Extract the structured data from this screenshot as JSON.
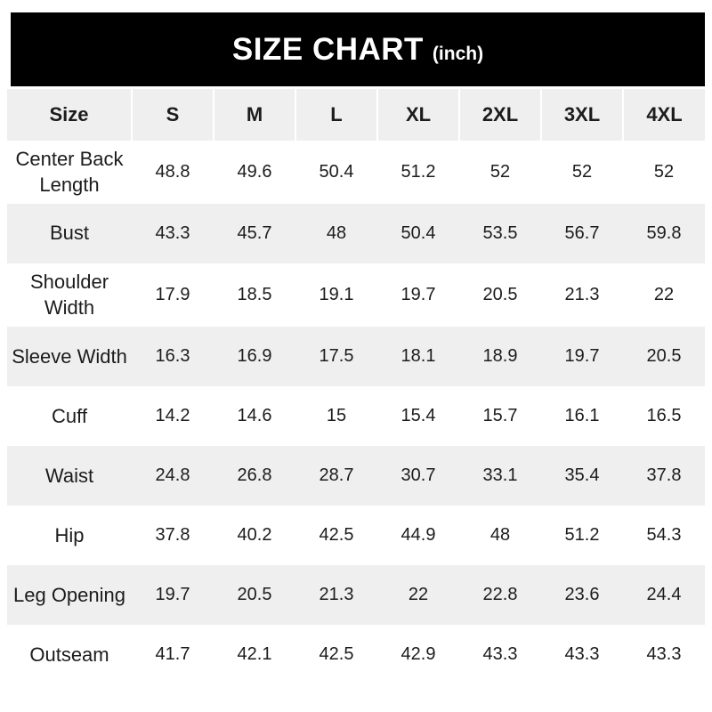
{
  "header": {
    "title": "SIZE CHART",
    "unit_label": "(inch)"
  },
  "colors": {
    "banner_bg": "#000000",
    "banner_text": "#ffffff",
    "stripe": "#efefef",
    "text": "#1c1c1c",
    "page_bg": "#ffffff"
  },
  "chart_data": {
    "type": "table",
    "title": "SIZE CHART",
    "unit": "(inch)",
    "columns": [
      "Size",
      "S",
      "M",
      "L",
      "XL",
      "2XL",
      "3XL",
      "4XL"
    ],
    "rows": [
      {
        "label": "Center Back Length",
        "values": [
          "48.8",
          "49.6",
          "50.4",
          "51.2",
          "52",
          "52",
          "52"
        ]
      },
      {
        "label": "Bust",
        "values": [
          "43.3",
          "45.7",
          "48",
          "50.4",
          "53.5",
          "56.7",
          "59.8"
        ]
      },
      {
        "label": "Shoulder Width",
        "values": [
          "17.9",
          "18.5",
          "19.1",
          "19.7",
          "20.5",
          "21.3",
          "22"
        ]
      },
      {
        "label": "Sleeve Width",
        "values": [
          "16.3",
          "16.9",
          "17.5",
          "18.1",
          "18.9",
          "19.7",
          "20.5"
        ]
      },
      {
        "label": "Cuff",
        "values": [
          "14.2",
          "14.6",
          "15",
          "15.4",
          "15.7",
          "16.1",
          "16.5"
        ]
      },
      {
        "label": "Waist",
        "values": [
          "24.8",
          "26.8",
          "28.7",
          "30.7",
          "33.1",
          "35.4",
          "37.8"
        ]
      },
      {
        "label": "Hip",
        "values": [
          "37.8",
          "40.2",
          "42.5",
          "44.9",
          "48",
          "51.2",
          "54.3"
        ]
      },
      {
        "label": "Leg Opening",
        "values": [
          "19.7",
          "20.5",
          "21.3",
          "22",
          "22.8",
          "23.6",
          "24.4"
        ]
      },
      {
        "label": "Outseam",
        "values": [
          "41.7",
          "42.1",
          "42.5",
          "42.9",
          "43.3",
          "43.3",
          "43.3"
        ]
      }
    ]
  }
}
